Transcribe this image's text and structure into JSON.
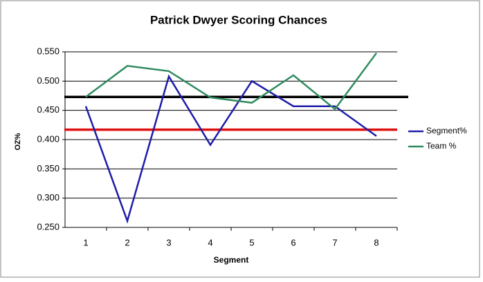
{
  "chart_data": {
    "type": "line",
    "title": "Patrick Dwyer Scoring Chances",
    "x_label": "Segment",
    "y_label": "OZ%",
    "categories": [
      "1",
      "2",
      "3",
      "4",
      "5",
      "6",
      "7",
      "8"
    ],
    "series": [
      {
        "name": "Segment%",
        "color": "#1c1ca8",
        "values": [
          0.457,
          0.261,
          0.508,
          0.391,
          0.5,
          0.457,
          0.457,
          0.406
        ]
      },
      {
        "name": "Team %",
        "color": "#2e8b5f",
        "values": [
          0.473,
          0.526,
          0.517,
          0.472,
          0.463,
          0.51,
          0.452,
          0.548
        ]
      }
    ],
    "reference_lines": [
      {
        "value": 0.473,
        "color": "#000000"
      },
      {
        "value": 0.417,
        "color": "#e01010"
      }
    ],
    "ylim": [
      0.25,
      0.55
    ],
    "yticks": [
      {
        "value": 0.25,
        "label": "0.250"
      },
      {
        "value": 0.3,
        "label": "0.300"
      },
      {
        "value": 0.35,
        "label": "0.350"
      },
      {
        "value": 0.4,
        "label": "0.400"
      },
      {
        "value": 0.45,
        "label": "0.450"
      },
      {
        "value": 0.5,
        "label": "0.500"
      },
      {
        "value": 0.55,
        "label": "0.550"
      }
    ],
    "grid": true,
    "legend": "right"
  }
}
